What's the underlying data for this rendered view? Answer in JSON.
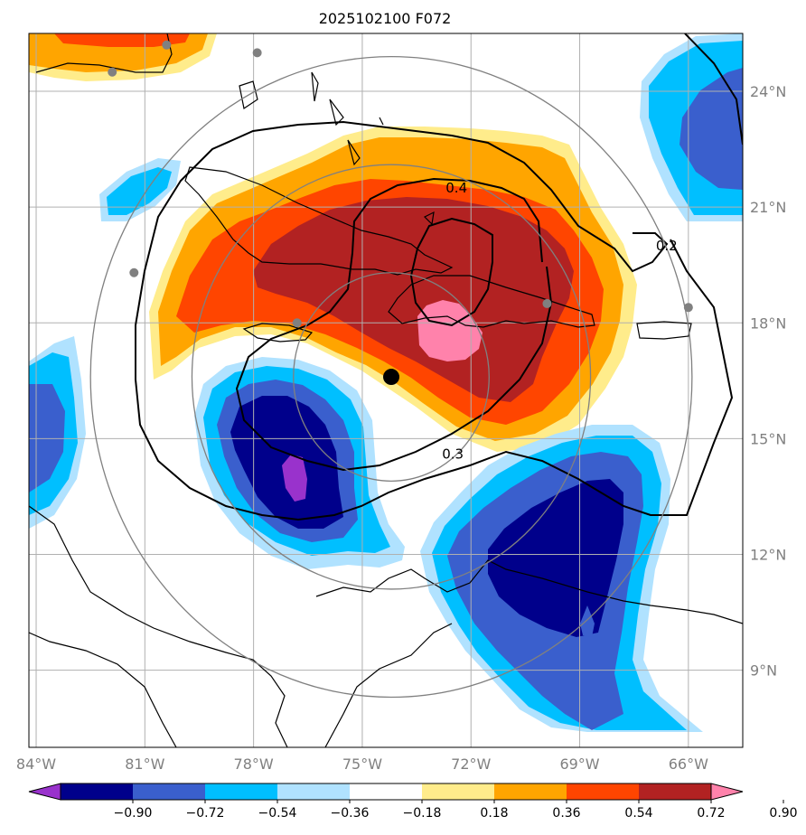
{
  "title": "2025102100 F072",
  "map": {
    "lon_range": [
      -84.2,
      -64.5
    ],
    "lat_range": [
      7.0,
      25.5
    ],
    "lon_ticks": [
      {
        "value": -84,
        "label": "84°W"
      },
      {
        "value": -81,
        "label": "81°W"
      },
      {
        "value": -78,
        "label": "78°W"
      },
      {
        "value": -75,
        "label": "75°W"
      },
      {
        "value": -72,
        "label": "72°W"
      },
      {
        "value": -69,
        "label": "69°W"
      },
      {
        "value": -66,
        "label": "66°W"
      }
    ],
    "lat_ticks": [
      {
        "value": 24,
        "label": "24°N"
      },
      {
        "value": 21,
        "label": "21°N"
      },
      {
        "value": 18,
        "label": "18°N"
      },
      {
        "value": 15,
        "label": "15°N"
      },
      {
        "value": 12,
        "label": "12°N"
      },
      {
        "value": 9,
        "label": "9°N"
      }
    ],
    "center": {
      "lon": -74.2,
      "lat": 16.6
    },
    "range_rings_deg": [
      2.7,
      5.5,
      8.3
    ],
    "stations": [
      {
        "lon": -80.4,
        "lat": 25.2
      },
      {
        "lon": -81.9,
        "lat": 24.5
      },
      {
        "lon": -77.9,
        "lat": 25.0
      },
      {
        "lon": -81.3,
        "lat": 19.3
      },
      {
        "lon": -76.8,
        "lat": 18.0
      },
      {
        "lon": -69.9,
        "lat": 18.5
      },
      {
        "lon": -66.0,
        "lat": 18.4
      }
    ],
    "contours": [
      {
        "label": "0.2",
        "lon": -66.6,
        "lat": 20.0
      },
      {
        "label": "0.3",
        "lon": -72.5,
        "lat": 14.6
      },
      {
        "label": "0.4",
        "lon": -72.4,
        "lat": 21.5
      }
    ]
  },
  "colorbar": {
    "colors": [
      "#9932cc",
      "#00008b",
      "#3a5fcd",
      "#00bfff",
      "#b0e2ff",
      "#ffffff",
      "#ffec8b",
      "#ffa500",
      "#ff4500",
      "#b22222",
      "#ff82ab"
    ],
    "tick_labels": [
      "−0.90",
      "−0.72",
      "−0.54",
      "−0.36",
      "−0.18",
      "0.18",
      "0.36",
      "0.54",
      "0.72",
      "0.90"
    ]
  },
  "legend_colors": {
    "land_outline": "#000000",
    "grid": "#b0b0b0",
    "ring": "#808080",
    "tick_text": "#808080"
  }
}
